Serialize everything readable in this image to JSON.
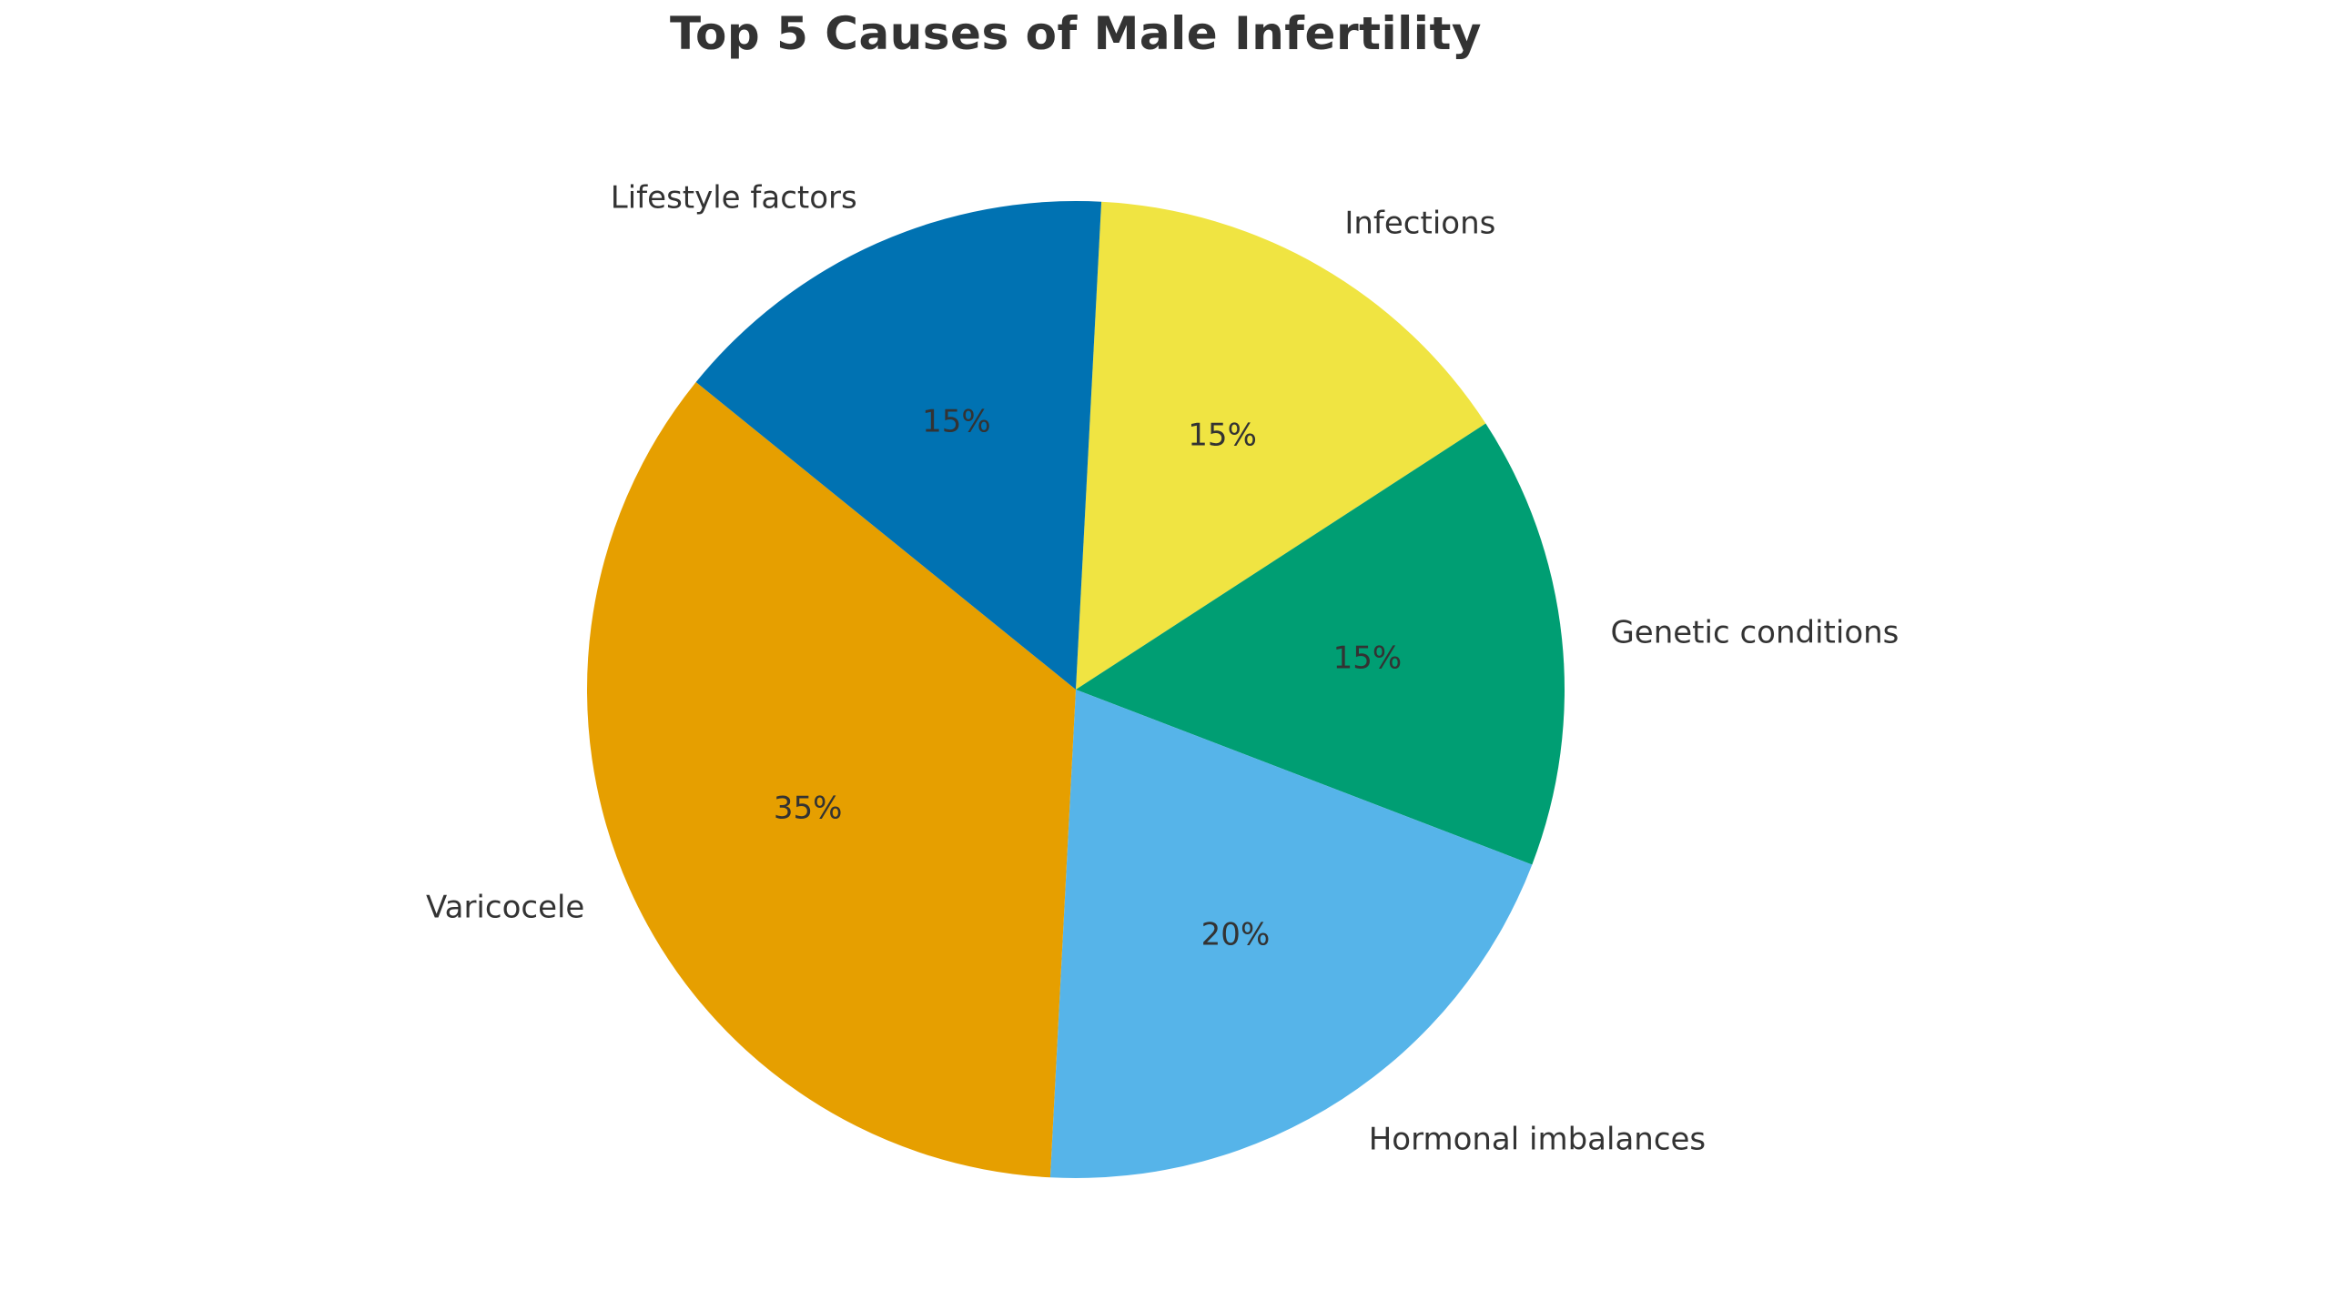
{
  "chart_data": {
    "type": "pie",
    "title": "Top 5 Causes of Male Infertility",
    "legend": "none",
    "grid": "none",
    "background": "#ffffff",
    "text_color": "#333333",
    "start_angle_deg": 87,
    "direction": "clockwise",
    "label_distance_ratio": 1.1,
    "pct_distance_ratio": 0.6,
    "slices": [
      {
        "label": "Infections",
        "value": 15,
        "pct_label": "15%",
        "color": "#F0E442"
      },
      {
        "label": "Genetic conditions",
        "value": 15,
        "pct_label": "15%",
        "color": "#009E73"
      },
      {
        "label": "Hormonal imbalances",
        "value": 20,
        "pct_label": "20%",
        "color": "#56B4E9"
      },
      {
        "label": "Varicocele",
        "value": 35,
        "pct_label": "35%",
        "color": "#E69F00"
      },
      {
        "label": "Lifestyle factors",
        "value": 15,
        "pct_label": "15%",
        "color": "#0072B2"
      }
    ]
  }
}
